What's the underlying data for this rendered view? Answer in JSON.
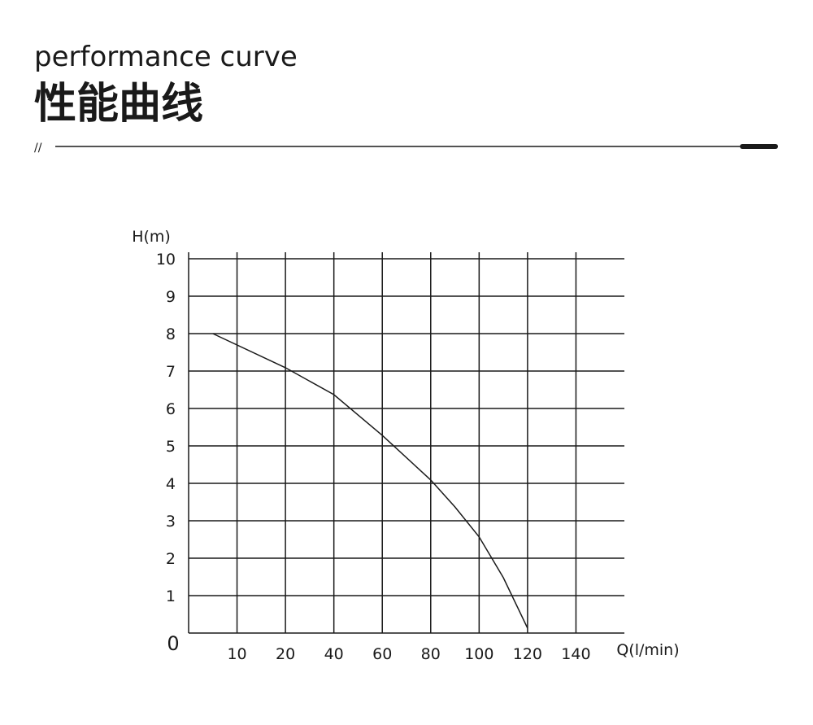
{
  "header": {
    "subtitle": "performance curve",
    "title": "性能曲线",
    "divider_mark": "//"
  },
  "chart_data": {
    "type": "line",
    "y_label": "H(m)",
    "x_label": "Q(l/min)",
    "origin_label": "0",
    "x": [
      5,
      20,
      40,
      60,
      80,
      90,
      100,
      110,
      120
    ],
    "series": [
      {
        "color": "#1a1a1a",
        "values": [
          8,
          7.09,
          6.37,
          5.28,
          4.09,
          3.37,
          2.57,
          1.48,
          0.13
        ]
      }
    ],
    "xlim": [
      0,
      160
    ],
    "xticks": [
      10,
      20,
      40,
      60,
      80,
      100,
      120,
      140
    ],
    "ylim": [
      0,
      10
    ],
    "yticks": [
      1,
      2,
      3,
      4,
      5,
      6,
      7,
      8,
      9,
      10
    ],
    "grid": true
  }
}
